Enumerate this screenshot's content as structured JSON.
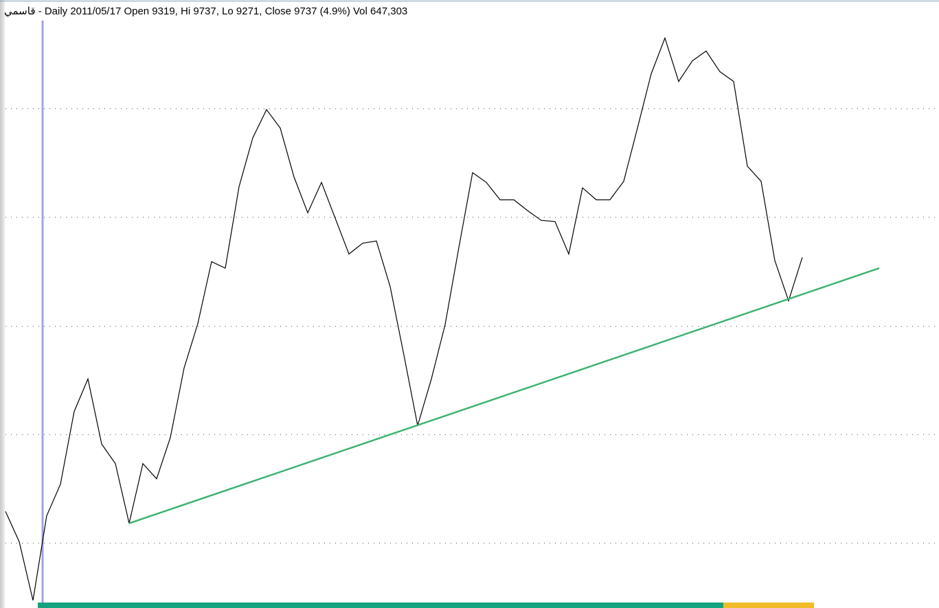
{
  "chart_data": {
    "type": "line",
    "title": "قاسمي - Daily 2011/05/17 Open 9319, Hi 9737, Lo 9271, Close 9737 (4.9%) Vol 647,303",
    "series": [
      {
        "color": "#000000",
        "values": [
          1.29,
          1.01,
          0.47,
          1.25,
          1.54,
          2.21,
          2.51,
          1.91,
          1.73,
          1.18,
          1.73,
          1.59,
          1.97,
          2.61,
          3.02,
          3.59,
          3.53,
          4.28,
          4.73,
          4.99,
          4.82,
          4.37,
          4.04,
          4.32,
          3.99,
          3.66,
          3.76,
          3.78,
          3.36,
          2.73,
          2.08,
          2.51,
          3.01,
          3.72,
          4.41,
          4.32,
          4.16,
          4.16,
          4.06,
          3.97,
          3.96,
          3.66,
          4.27,
          4.16,
          4.16,
          4.33,
          4.82,
          5.32,
          5.65,
          5.25,
          5.44,
          5.53,
          5.34,
          5.25,
          4.47,
          4.33,
          3.6,
          3.23,
          3.63
        ]
      }
    ],
    "trendline": {
      "color": "#3cb371",
      "x": [
        9,
        63.6
      ],
      "values": [
        1.18,
        3.53
      ]
    },
    "xlim": [
      -0.4,
      67.95
    ],
    "ylim": [
      0.4,
      6
    ],
    "yticks": [
      1,
      2,
      3,
      4,
      5
    ],
    "grid": true
  }
}
